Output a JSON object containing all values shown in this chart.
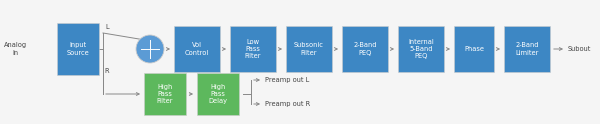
{
  "fig_width": 6.0,
  "fig_height": 1.24,
  "dpi": 100,
  "bg_color": "#f5f5f5",
  "blue_box": "#3d87c4",
  "green_box": "#5db85d",
  "white_text": "#ffffff",
  "dark_text": "#444444",
  "line_color": "#888888",
  "arrow_color": "#888888",
  "font_size": 4.8,
  "analog_in": "Analog\nIn",
  "input_source": "Input\nSource",
  "vol_control": "Vol\nControl",
  "lpf": "Low\nPass\nFilter",
  "subsonic": "Subsonic\nFilter",
  "peq2": "2-Band\nPEQ",
  "int5peq": "Internal\n5-Band\nPEQ",
  "phase": "Phase",
  "limiter": "2-Band\nLimiter",
  "subout": "Subout",
  "hpf": "High\nPass\nFilter",
  "hpd": "High\nPass\nDelay",
  "preamp_l": "Preamp out L",
  "preamp_r": "Preamp out R"
}
